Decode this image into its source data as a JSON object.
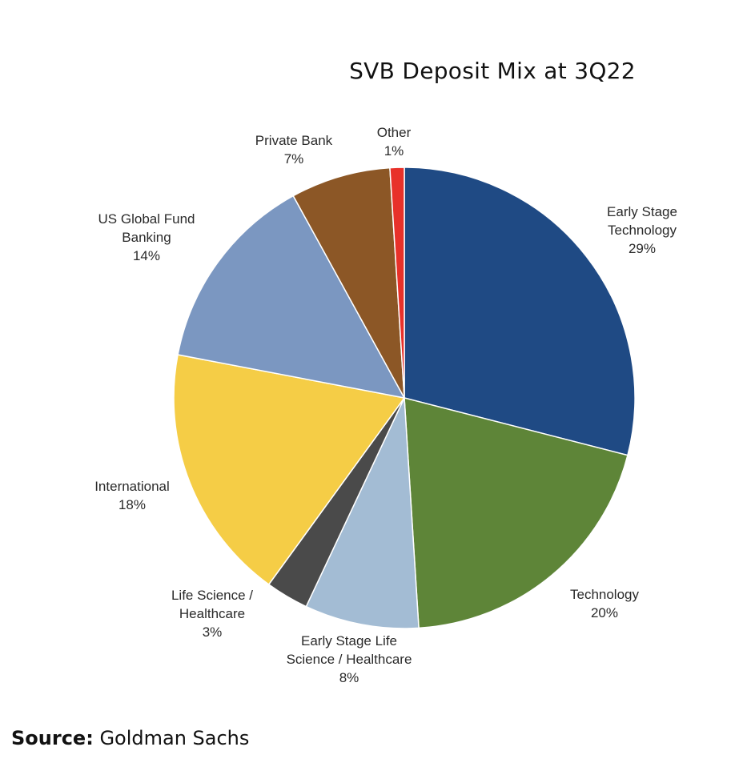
{
  "chart_data": {
    "type": "pie",
    "title": "SVB Deposit Mix at 3Q22",
    "start": "top",
    "direction": "clockwise",
    "slices": [
      {
        "label": [
          "Early Stage",
          "Technology"
        ],
        "value": 29,
        "pct": "29%",
        "color": "#1f4a84"
      },
      {
        "label": [
          "Technology"
        ],
        "value": 20,
        "pct": "20%",
        "color": "#5e8538"
      },
      {
        "label": [
          "Early Stage Life",
          "Science / Healthcare"
        ],
        "value": 8,
        "pct": "8%",
        "color": "#a3bcd4"
      },
      {
        "label": [
          "Life Science /",
          "Healthcare"
        ],
        "value": 3,
        "pct": "3%",
        "color": "#4a4a4a"
      },
      {
        "label": [
          "International"
        ],
        "value": 18,
        "pct": "18%",
        "color": "#f5cd46"
      },
      {
        "label": [
          "US Global Fund",
          "Banking"
        ],
        "value": 14,
        "pct": "14%",
        "color": "#7b97c1"
      },
      {
        "label": [
          "Private Bank"
        ],
        "value": 7,
        "pct": "7%",
        "color": "#8c5726"
      },
      {
        "label": [
          "Other"
        ],
        "value": 1,
        "pct": "1%",
        "color": "#e8312a"
      }
    ]
  },
  "source": {
    "label": "Source:",
    "value": "Goldman Sachs"
  }
}
